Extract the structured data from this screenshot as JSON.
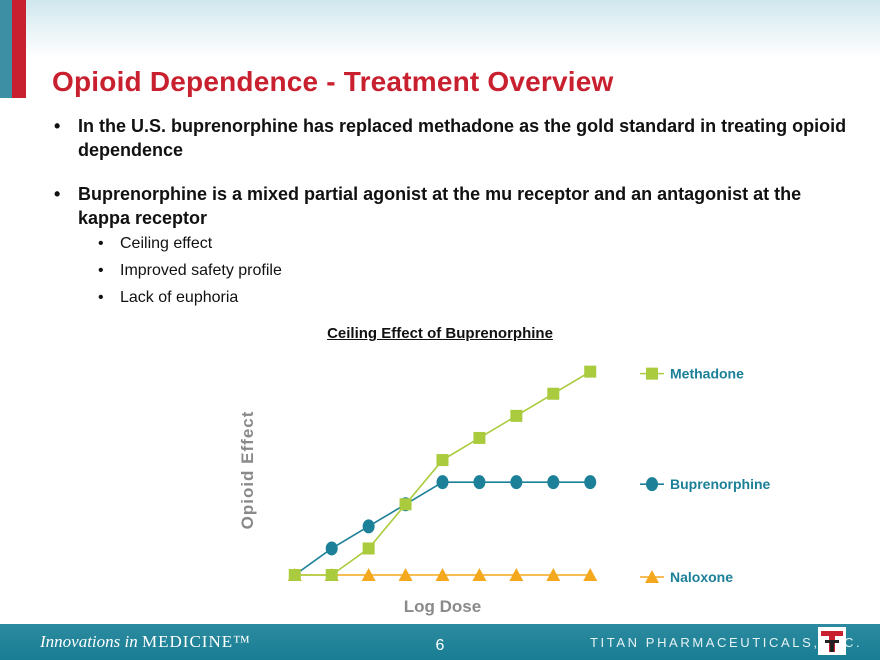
{
  "slide": {
    "title": "Opioid Dependence - Treatment Overview",
    "bullets": [
      "In the U.S. buprenorphine has replaced methadone as the gold standard in treating opioid dependence",
      "Buprenorphine is a mixed partial agonist at the mu receptor and an antagonist at the kappa receptor"
    ],
    "sub_bullets": [
      "Ceiling effect",
      "Improved safety profile",
      "Lack of euphoria"
    ],
    "bullet_glyph": "•"
  },
  "chart_data": {
    "type": "line",
    "title": "Ceiling Effect of Buprenorphine",
    "xlabel": "Log Dose",
    "ylabel": "Opioid Effect",
    "x": [
      1,
      2,
      3,
      4,
      5,
      6,
      7,
      8,
      9
    ],
    "xlim": [
      0.6,
      9.4
    ],
    "ylim": [
      0,
      9.5
    ],
    "ticks_shown": false,
    "legend_position": "right",
    "series": [
      {
        "name": "Methadone",
        "marker": "square",
        "color": "#a9cb3d",
        "values": [
          0,
          0,
          1.2,
          3.2,
          5.2,
          6.2,
          7.2,
          8.2,
          9.2
        ]
      },
      {
        "name": "Buprenorphine",
        "marker": "circle",
        "color": "#1b8098",
        "values": [
          0,
          1.2,
          2.2,
          3.2,
          4.2,
          4.2,
          4.2,
          4.2,
          4.2
        ]
      },
      {
        "name": "Naloxone",
        "marker": "triangle",
        "color": "#f3a81d",
        "values": [
          0,
          0,
          0,
          0,
          0,
          0,
          0,
          0,
          0
        ]
      }
    ]
  },
  "footer": {
    "tagline_prefix": "Innovations in",
    "tagline_main": "MEDICINE™",
    "page_number": "6",
    "company": "TITAN PHARMACEUTICALS, INC."
  },
  "colors": {
    "accent": "#c8202f",
    "teal": "#197d93"
  }
}
